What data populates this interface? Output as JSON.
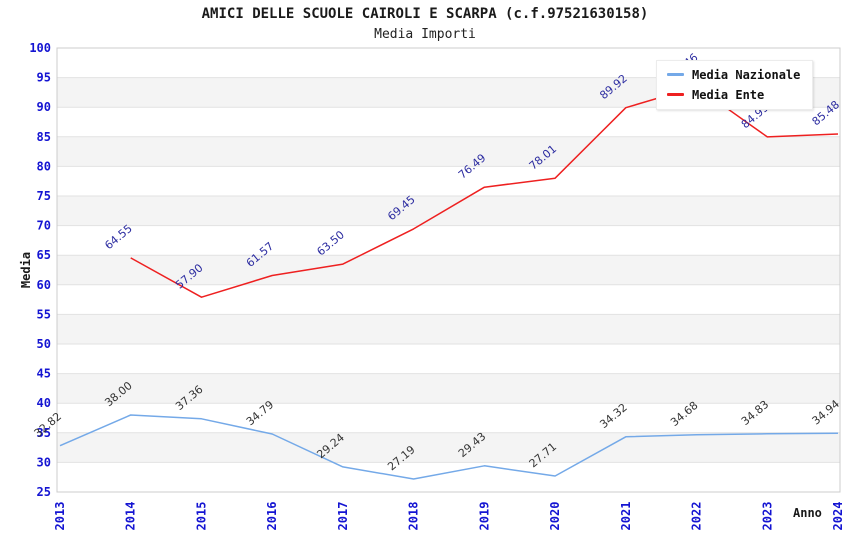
{
  "title": "AMICI DELLE SCUOLE CAIROLI E SCARPA (c.f.97521630158)",
  "subtitle": "Media Importi",
  "legend": {
    "items": [
      {
        "label": "Media Nazionale",
        "color": "#74a9e8"
      },
      {
        "label": "Media Ente",
        "color": "#ee2020"
      }
    ]
  },
  "axes": {
    "y_title": "Media",
    "x_title": "Anno"
  },
  "colors": {
    "tick_label": "#1414d2",
    "band_gray": "#f4f4f4",
    "gridline": "#e2e2e2",
    "plot_border": "#cccccc",
    "nazionale_line": "#74a9e8",
    "nazionale_label": "#333333",
    "ente_line": "#ee2020",
    "ente_label": "#2b2ba0"
  },
  "chart_data": {
    "type": "line",
    "title": "AMICI DELLE SCUOLE CAIROLI E SCARPA (c.f.97521630158)",
    "subtitle": "Media Importi",
    "xlabel": "Anno",
    "ylabel": "Media",
    "x": [
      2013,
      2014,
      2015,
      2016,
      2017,
      2018,
      2019,
      2020,
      2021,
      2022,
      2023,
      2024
    ],
    "ylim": [
      25,
      100
    ],
    "ytick_step": 5,
    "grid": "horizontal-bands-alternating",
    "legend_position": "top-right",
    "series": [
      {
        "name": "Media Nazionale",
        "color": "#74a9e8",
        "label_color": "#333333",
        "x": [
          2013,
          2014,
          2015,
          2016,
          2017,
          2018,
          2019,
          2020,
          2021,
          2022,
          2023,
          2024
        ],
        "values": [
          32.82,
          38.0,
          37.36,
          34.79,
          29.24,
          27.19,
          29.43,
          27.71,
          34.32,
          34.68,
          34.83,
          34.94
        ]
      },
      {
        "name": "Media Ente",
        "color": "#ee2020",
        "label_color": "#2b2ba0",
        "x": [
          2014,
          2015,
          2016,
          2017,
          2018,
          2019,
          2020,
          2021,
          2022,
          2023,
          2024
        ],
        "values": [
          64.55,
          57.9,
          61.57,
          63.5,
          69.45,
          76.49,
          78.01,
          89.92,
          93.46,
          84.99,
          85.48
        ]
      }
    ]
  }
}
